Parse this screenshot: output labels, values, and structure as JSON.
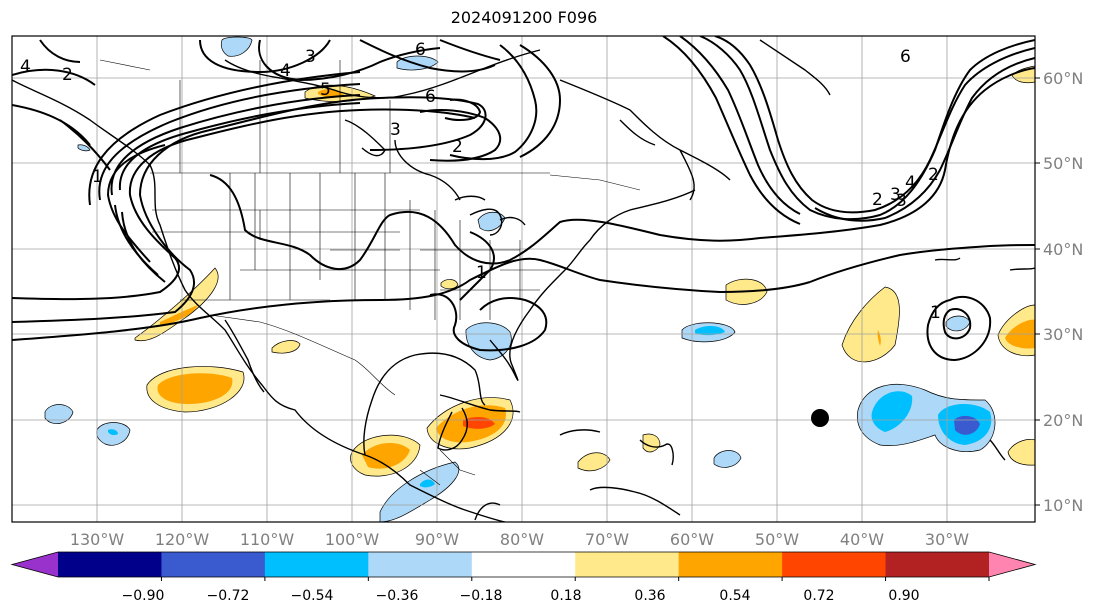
{
  "title": "2024091200 F096",
  "lat_labels": [
    "60°N",
    "50°N",
    "40°N",
    "30°N",
    "20°N",
    "10°N"
  ],
  "lon_labels": [
    "130°W",
    "120°W",
    "110°W",
    "100°W",
    "90°W",
    "80°W",
    "70°W",
    "60°W",
    "50°W",
    "40°W",
    "30°W"
  ],
  "colorbar": {
    "ticks": [
      "−0.90",
      "−0.72",
      "−0.54",
      "−0.36",
      "−0.18",
      "0.18",
      "0.36",
      "0.54",
      "0.72",
      "0.90"
    ],
    "colors": [
      "#9932cc",
      "#00008b",
      "#3a5bd0",
      "#00bfff",
      "#add8f7",
      "#ffffff",
      "#ffe98a",
      "#ffa500",
      "#ff4500",
      "#b22222",
      "#ff85b0"
    ]
  },
  "contour_labels": [
    "3",
    "6",
    "5",
    "6",
    "3",
    "2",
    "4",
    "4",
    "1",
    "3",
    "6",
    "2",
    "2",
    "3",
    "4",
    "1",
    "2",
    "1"
  ],
  "marker": "storm-center-dot"
}
